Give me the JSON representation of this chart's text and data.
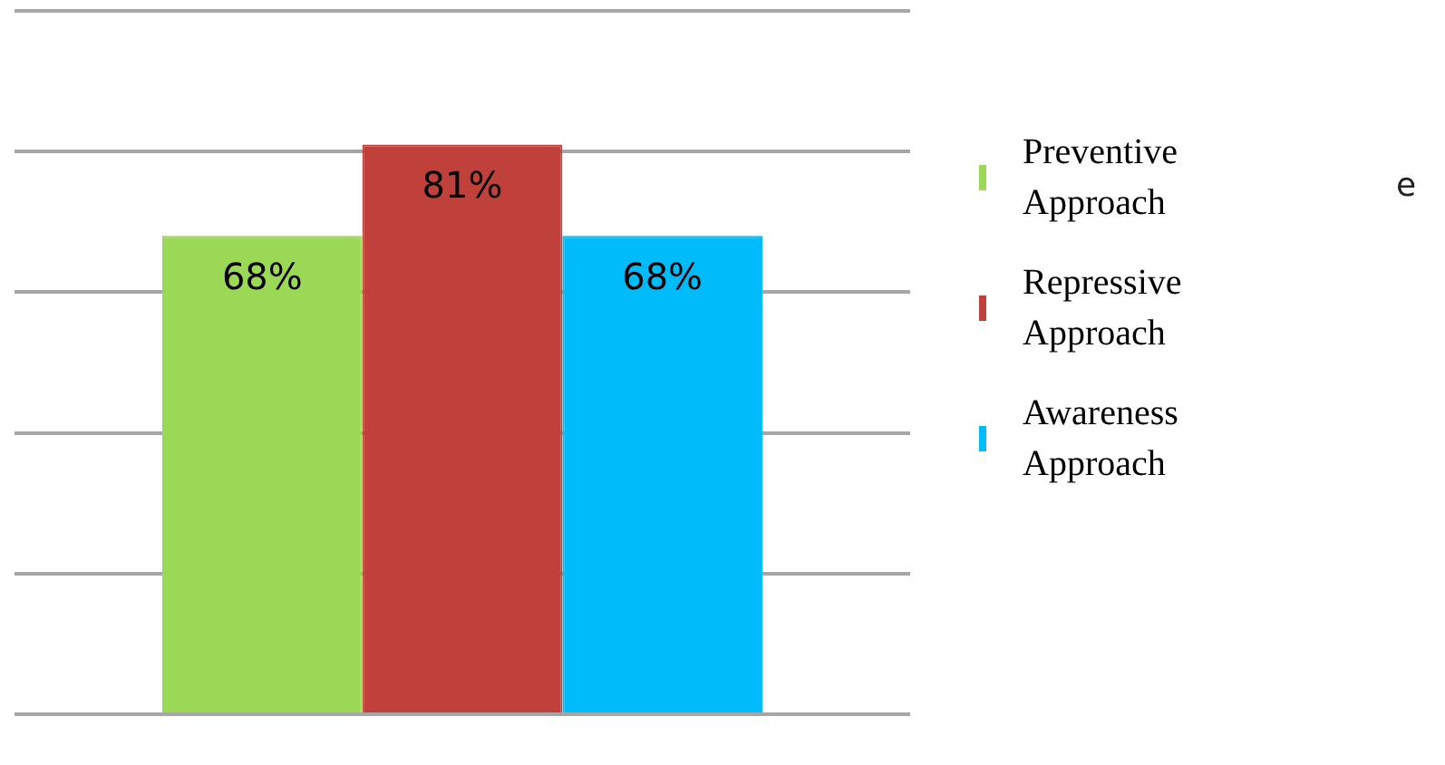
{
  "chart_data": {
    "type": "bar",
    "categories": [
      null
    ],
    "series": [
      {
        "name": "Preventive Approach",
        "color": "#9bd855",
        "values": [
          68
        ],
        "value_labels": [
          "68%"
        ]
      },
      {
        "name": "Repressive Approach",
        "color": "#c0403c",
        "values": [
          81
        ],
        "value_labels": [
          "81%"
        ]
      },
      {
        "name": "Awareness Approach",
        "color": "#00bbf9",
        "values": [
          68
        ],
        "value_labels": [
          "68%"
        ]
      }
    ],
    "grid": "y",
    "tick_labels": false,
    "legend": "right",
    "annotations": [
      "e"
    ]
  }
}
